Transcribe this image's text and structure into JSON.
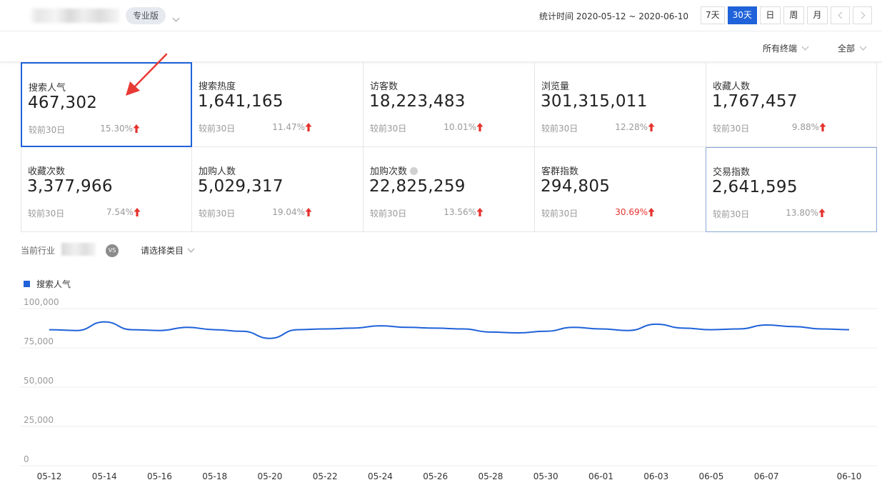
{
  "header": {
    "edition_label": "专业版",
    "stat_time_label": "统计时间 2020-05-12 ~ 2020-06-10",
    "range_buttons": [
      "7天",
      "30天",
      "日",
      "周",
      "月"
    ],
    "active_range": "30天"
  },
  "filters": {
    "terminal": "所有终端",
    "scope": "全部"
  },
  "metrics": [
    {
      "title": "搜索人气",
      "value": "467,302",
      "compare_label": "较前30日",
      "change": "15.30%",
      "trend": "up"
    },
    {
      "title": "搜索热度",
      "value": "1,641,165",
      "compare_label": "较前30日",
      "change": "11.47%",
      "trend": "up"
    },
    {
      "title": "访客数",
      "value": "18,223,483",
      "compare_label": "较前30日",
      "change": "10.01%",
      "trend": "up"
    },
    {
      "title": "浏览量",
      "value": "301,315,011",
      "compare_label": "较前30日",
      "change": "12.28%",
      "trend": "up"
    },
    {
      "title": "收藏人数",
      "value": "1,767,457",
      "compare_label": "较前30日",
      "change": "9.88%",
      "trend": "up"
    },
    {
      "title": "收藏次数",
      "value": "3,377,966",
      "compare_label": "较前30日",
      "change": "7.54%",
      "trend": "up"
    },
    {
      "title": "加购人数",
      "value": "5,029,317",
      "compare_label": "较前30日",
      "change": "19.04%",
      "trend": "up"
    },
    {
      "title": "加购次数",
      "value": "22,825,259",
      "compare_label": "较前30日",
      "change": "13.56%",
      "trend": "up"
    },
    {
      "title": "客群指数",
      "value": "294,805",
      "compare_label": "较前30日",
      "change": "30.69%",
      "trend": "up"
    },
    {
      "title": "交易指数",
      "value": "2,641,595",
      "compare_label": "较前30日",
      "change": "13.80%",
      "trend": "up"
    }
  ],
  "industry": {
    "label": "当前行业",
    "vs_label": "VS",
    "category_placeholder": "请选择类目"
  },
  "colors": {
    "accent": "#1f62d9",
    "up_arrow": "#e5322d",
    "annotation_arrow": "#e83a35"
  },
  "chart_data": {
    "type": "line",
    "legend": [
      "搜索人气"
    ],
    "legend_position": "top-left",
    "grid": true,
    "ylim": [
      0,
      100000
    ],
    "y_ticks": [
      "0",
      "25,000",
      "50,000",
      "75,000",
      "100,000"
    ],
    "x_tick_labels": [
      "05-12",
      "05-14",
      "05-16",
      "05-18",
      "05-20",
      "05-22",
      "05-24",
      "05-26",
      "05-28",
      "05-30",
      "06-01",
      "06-03",
      "06-05",
      "06-07",
      "06-10"
    ],
    "series": [
      {
        "name": "搜索人气",
        "x": [
          "05-12",
          "05-13",
          "05-14",
          "05-15",
          "05-16",
          "05-17",
          "05-18",
          "05-19",
          "05-20",
          "05-21",
          "05-22",
          "05-23",
          "05-24",
          "05-25",
          "05-26",
          "05-27",
          "05-28",
          "05-29",
          "05-30",
          "05-31",
          "06-01",
          "06-02",
          "06-03",
          "06-04",
          "06-05",
          "06-06",
          "06-07",
          "06-08",
          "06-09",
          "06-10"
        ],
        "values": [
          82000,
          81500,
          87000,
          82000,
          81500,
          83500,
          82000,
          81000,
          76500,
          82000,
          82500,
          83000,
          84500,
          83500,
          83000,
          82500,
          80500,
          80000,
          81000,
          83500,
          82500,
          81500,
          85500,
          83000,
          82000,
          82500,
          85000,
          84000,
          82500,
          82000
        ]
      }
    ]
  }
}
